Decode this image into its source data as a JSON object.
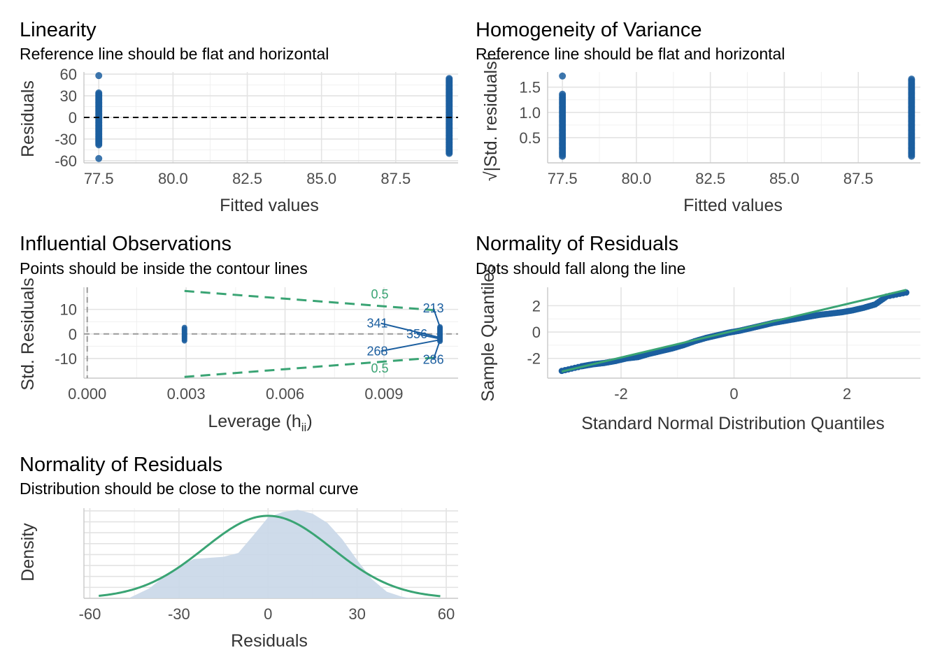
{
  "colors": {
    "blue": "#1b5e9f",
    "green": "#3aa474",
    "density_fill": "#c9d7e8",
    "grey_dash": "#9a9a9a",
    "text": "#000000",
    "tick": "#4d4d4d"
  },
  "chart_data": [
    {
      "id": "linearity",
      "type": "scatter",
      "title": "Linearity",
      "subtitle": "Reference line should be flat and horizontal",
      "xlabel": "Fitted values",
      "ylabel": "Residuals",
      "xlim": [
        77.0,
        89.6
      ],
      "ylim": [
        -63,
        63
      ],
      "xticks": [
        77.5,
        80.0,
        82.5,
        85.0,
        87.5
      ],
      "xtick_labels": [
        "77.5",
        "80.0",
        "82.5",
        "85.0",
        "87.5"
      ],
      "yticks": [
        -60,
        -30,
        0,
        30,
        60
      ],
      "ytick_labels": [
        "-60",
        "-30",
        "0",
        "30",
        "60"
      ],
      "reference_line": {
        "y": 0,
        "style": "dashed",
        "color": "#000000"
      },
      "groups": [
        {
          "x": 77.5,
          "y_min": -38,
          "y_max": 35,
          "outliers": [
            58,
            -57
          ]
        },
        {
          "x": 89.3,
          "y_min": -50,
          "y_max": 55,
          "outliers": []
        }
      ]
    },
    {
      "id": "homogeneity",
      "type": "scatter",
      "title": "Homogeneity of Variance",
      "subtitle": "Reference line should be flat and horizontal",
      "xlabel": "Fitted values",
      "ylabel": "√|Std. residuals|",
      "xlim": [
        77.0,
        89.6
      ],
      "ylim": [
        0.0,
        1.8
      ],
      "xticks": [
        77.5,
        80.0,
        82.5,
        85.0,
        87.5
      ],
      "xtick_labels": [
        "77.5",
        "80.0",
        "82.5",
        "85.0",
        "87.5"
      ],
      "yticks": [
        0.5,
        1.0,
        1.5
      ],
      "ytick_labels": [
        "0.5",
        "1.0",
        "1.5"
      ],
      "groups": [
        {
          "x": 77.5,
          "y_min": 0.13,
          "y_max": 1.38,
          "outliers": [
            1.72
          ]
        },
        {
          "x": 89.3,
          "y_min": 0.13,
          "y_max": 1.68,
          "outliers": []
        }
      ]
    },
    {
      "id": "influential",
      "type": "scatter",
      "title": "Influential Observations",
      "subtitle": "Points should be inside the contour lines",
      "xlabel": "Leverage (h",
      "xlabel_sub": "ii",
      "xlabel_close": ")",
      "ylabel": "Std. Residuals",
      "xlim": [
        -0.0001,
        0.01125
      ],
      "ylim": [
        -18,
        19
      ],
      "xticks": [
        0.0,
        0.003,
        0.006,
        0.009
      ],
      "xtick_labels": [
        "0.000",
        "0.003",
        "0.006",
        "0.009"
      ],
      "yticks": [
        -10,
        0,
        10
      ],
      "ytick_labels": [
        "-10",
        "0",
        "10"
      ],
      "contour_label": "0.5",
      "contours": [
        {
          "x": [
            0.00295,
            0.0107
          ],
          "y": [
            17.5,
            9.5
          ]
        },
        {
          "x": [
            0.00295,
            0.0107
          ],
          "y": [
            -17.5,
            -9.5
          ]
        }
      ],
      "groups": [
        {
          "x": 0.00295,
          "y_min": -2.8,
          "y_max": 2.8
        },
        {
          "x": 0.0107,
          "y_min": -3.0,
          "y_max": 3.0
        }
      ],
      "labelled_points": [
        {
          "label": "213",
          "x": 0.0107,
          "y": 2.8,
          "tx": 0.0105,
          "ty": 10.5
        },
        {
          "label": "341",
          "x": 0.0107,
          "y": -1.5,
          "tx": 0.0088,
          "ty": 4.3
        },
        {
          "label": "356",
          "x": 0.0107,
          "y": -2.0,
          "tx": 0.01,
          "ty": 0.0
        },
        {
          "label": "268",
          "x": 0.0107,
          "y": -2.4,
          "tx": 0.0088,
          "ty": -7.0
        },
        {
          "label": "286",
          "x": 0.0107,
          "y": -2.6,
          "tx": 0.0105,
          "ty": -10.5
        }
      ]
    },
    {
      "id": "qq",
      "type": "scatter",
      "title": "Normality of Residuals",
      "subtitle": "Dots should fall along the line",
      "xlabel": "Standard Normal Distribution Quantiles",
      "ylabel": "Sample Quantiles",
      "xlim": [
        -3.3,
        3.3
      ],
      "ylim": [
        -3.5,
        3.4
      ],
      "xticks": [
        -2,
        0,
        2
      ],
      "xtick_labels": [
        "-2",
        "0",
        "2"
      ],
      "yticks": [
        -2,
        0,
        2
      ],
      "ytick_labels": [
        "-2",
        "0",
        "2"
      ],
      "reference_line": {
        "x": [
          -3.05,
          3.05
        ],
        "y": [
          -3.0,
          3.2
        ]
      },
      "points": [
        [
          -3.05,
          -2.95
        ],
        [
          -2.7,
          -2.6
        ],
        [
          -2.5,
          -2.45
        ],
        [
          -2.3,
          -2.35
        ],
        [
          -2.1,
          -2.2
        ],
        [
          -1.9,
          -2.0
        ],
        [
          -1.7,
          -1.9
        ],
        [
          -1.5,
          -1.65
        ],
        [
          -1.3,
          -1.45
        ],
        [
          -1.1,
          -1.25
        ],
        [
          -0.9,
          -1.0
        ],
        [
          -0.7,
          -0.7
        ],
        [
          -0.5,
          -0.45
        ],
        [
          -0.3,
          -0.25
        ],
        [
          -0.1,
          -0.05
        ],
        [
          0.1,
          0.1
        ],
        [
          0.3,
          0.3
        ],
        [
          0.5,
          0.5
        ],
        [
          0.7,
          0.7
        ],
        [
          0.9,
          0.85
        ],
        [
          1.1,
          1.0
        ],
        [
          1.3,
          1.15
        ],
        [
          1.5,
          1.3
        ],
        [
          1.7,
          1.4
        ],
        [
          1.9,
          1.5
        ],
        [
          2.1,
          1.65
        ],
        [
          2.3,
          1.85
        ],
        [
          2.5,
          2.1
        ],
        [
          2.7,
          2.7
        ],
        [
          3.05,
          3.0
        ]
      ]
    },
    {
      "id": "density",
      "type": "area",
      "title": "Normality of Residuals",
      "subtitle": "Distribution should be close to the normal curve",
      "xlabel": "Residuals",
      "ylabel": "Density",
      "xlim": [
        -62,
        64
      ],
      "ylim": [
        0,
        0.0165
      ],
      "xticks": [
        -60,
        -30,
        0,
        30,
        60
      ],
      "xtick_labels": [
        "-60",
        "-30",
        "0",
        "30",
        "60"
      ],
      "empirical_density": {
        "x": [
          -47,
          -40,
          -35,
          -30,
          -25,
          -20,
          -15,
          -10,
          -5,
          0,
          5,
          10,
          15,
          20,
          25,
          30,
          35,
          40,
          45,
          48
        ],
        "y": [
          0.0,
          0.0018,
          0.004,
          0.0058,
          0.0072,
          0.0074,
          0.0076,
          0.0083,
          0.0115,
          0.0148,
          0.0158,
          0.0162,
          0.0155,
          0.0138,
          0.0108,
          0.007,
          0.0035,
          0.0012,
          0.0003,
          0.0
        ]
      },
      "normal_curve": {
        "mean": 0.0,
        "sd": 21.5,
        "x_range": [
          -57,
          58
        ]
      }
    }
  ]
}
